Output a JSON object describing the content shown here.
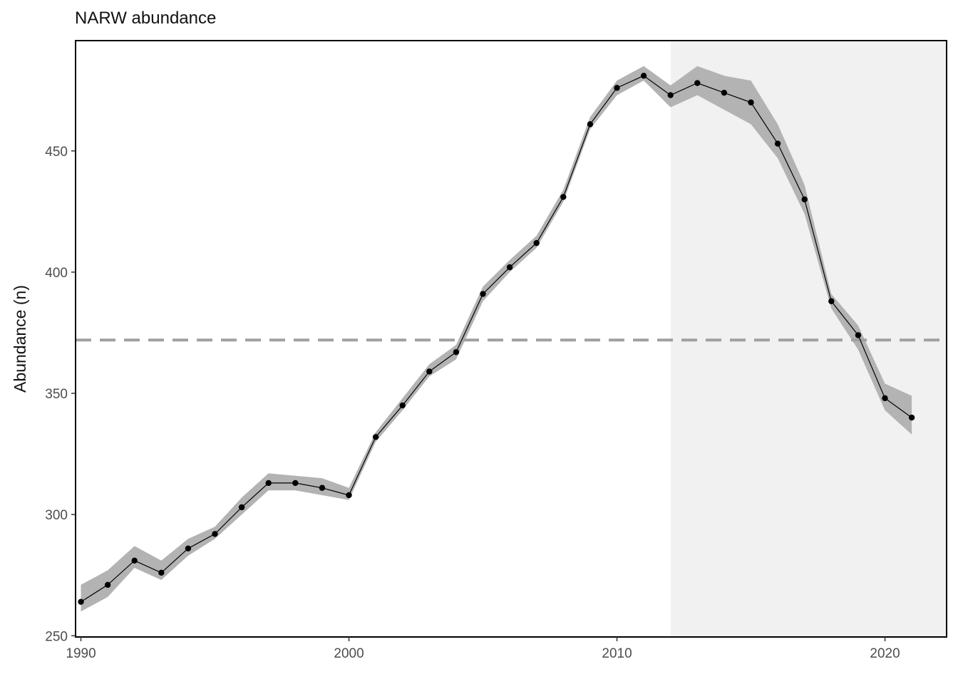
{
  "chart_data": {
    "type": "line",
    "title": "NARW abundance",
    "xlabel": "",
    "ylabel": "Abundance (n)",
    "xlim": [
      1989.8,
      2022.3
    ],
    "ylim": [
      249.5,
      495.5
    ],
    "x_ticks": [
      1990,
      2000,
      2010,
      2020
    ],
    "y_ticks": [
      250,
      300,
      350,
      400,
      450
    ],
    "grid": false,
    "reference_line": {
      "y": 372,
      "style": "dashed",
      "color": "#a0a0a0"
    },
    "shaded_region": {
      "x_start": 2012,
      "x_end": 2022.3,
      "color": "#f1f1f1"
    },
    "series": [
      {
        "x": [
          1990,
          1991,
          1992,
          1993,
          1994,
          1995,
          1996,
          1997,
          1998,
          1999,
          2000,
          2001,
          2002,
          2003,
          2004,
          2005,
          2006,
          2007,
          2008,
          2009,
          2010,
          2011,
          2012,
          2013,
          2014,
          2015,
          2016,
          2017,
          2018,
          2019,
          2020,
          2021
        ],
        "values": [
          264,
          271,
          281,
          276,
          286,
          292,
          303,
          313,
          313,
          311,
          308,
          332,
          345,
          359,
          367,
          391,
          402,
          412,
          431,
          461,
          476,
          481,
          473,
          478,
          474,
          470,
          453,
          430,
          388,
          374,
          348,
          340
        ],
        "lower": [
          260,
          266,
          278,
          273,
          283,
          290,
          300,
          310,
          310,
          308,
          306,
          330,
          343,
          357,
          364,
          388,
          400,
          410,
          429,
          459,
          473,
          479,
          468,
          473,
          467,
          461,
          447,
          424,
          385,
          368,
          343,
          333
        ],
        "upper": [
          271,
          277,
          287,
          281,
          290,
          295,
          307,
          317,
          316,
          315,
          311,
          334,
          348,
          362,
          370,
          394,
          405,
          415,
          434,
          464,
          479,
          485,
          477,
          485,
          481,
          479,
          461,
          436,
          391,
          378,
          354,
          349
        ],
        "line_color": "#000000",
        "ribbon_color": "#b3b3b3"
      }
    ]
  }
}
